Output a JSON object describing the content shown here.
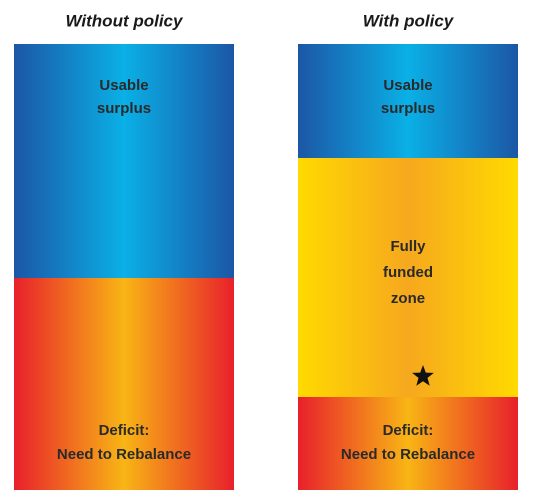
{
  "columns": [
    {
      "title": "Without  policy",
      "blocks": [
        {
          "lines": [
            "Usable",
            "surplus"
          ]
        },
        {
          "lines": [
            "Deficit:",
            "Need to Rebalance"
          ]
        }
      ]
    },
    {
      "title": "With policy",
      "blocks": [
        {
          "lines": [
            "Usable",
            "surplus"
          ]
        },
        {
          "lines": [
            "Fully",
            "funded",
            "zone"
          ]
        },
        {
          "lines": [
            "Deficit:",
            "Need to Rebalance"
          ]
        }
      ]
    }
  ]
}
